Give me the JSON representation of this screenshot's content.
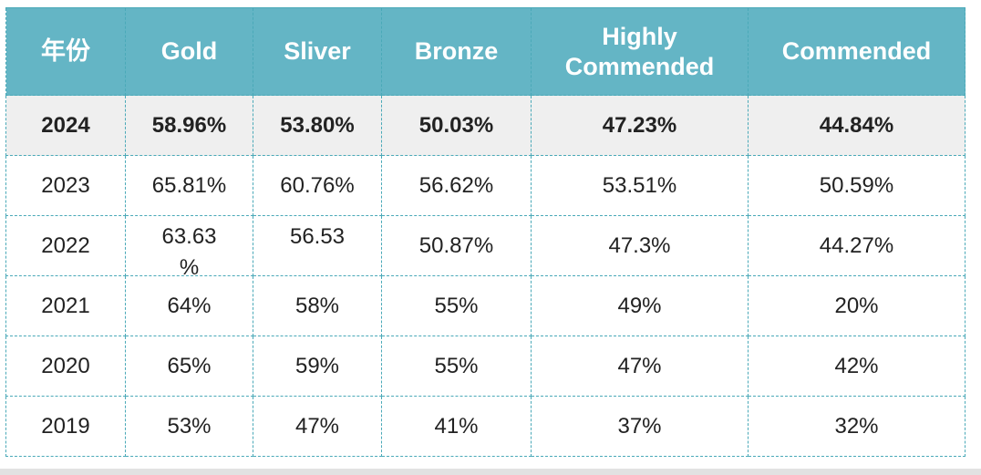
{
  "table": {
    "headers": [
      "年份",
      "Gold",
      "Sliver",
      "Bronze",
      "Highly Commended",
      "Commended"
    ],
    "header_lines": {
      "highly_1": "Highly",
      "highly_2": "Commended"
    },
    "rows": [
      {
        "year": "2024",
        "gold": "58.96%",
        "sliver": "53.80%",
        "bronze": "50.03%",
        "highly": "47.23%",
        "commended": "44.84%"
      },
      {
        "year": "2023",
        "gold": "65.81%",
        "sliver": "60.76%",
        "bronze": "56.62%",
        "highly": "53.51%",
        "commended": "50.59%"
      },
      {
        "year": "2022",
        "gold_line1": "63.63",
        "gold_line2": "%",
        "sliver": "56.53",
        "bronze": "50.87%",
        "highly": "47.3%",
        "commended": "44.27%"
      },
      {
        "year": "2021",
        "gold": "64%",
        "sliver": "58%",
        "bronze": "55%",
        "highly": "49%",
        "commended": "20%"
      },
      {
        "year": "2020",
        "gold": "65%",
        "sliver": "59%",
        "bronze": "55%",
        "highly": "47%",
        "commended": "42%"
      },
      {
        "year": "2019",
        "gold": "53%",
        "sliver": "47%",
        "bronze": "41%",
        "highly": "37%",
        "commended": "32%"
      }
    ]
  },
  "colors": {
    "header_bg": "#64b5c5",
    "header_text": "#ffffff",
    "border": "#4aa9b8",
    "highlight_row_bg": "#efefef"
  }
}
